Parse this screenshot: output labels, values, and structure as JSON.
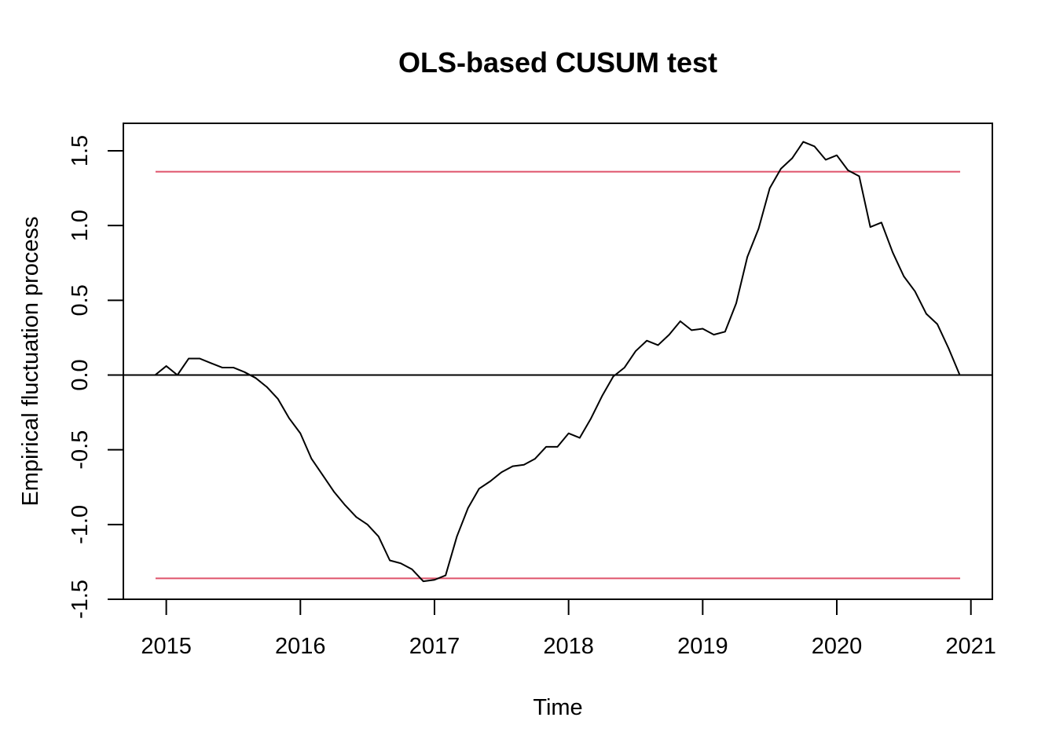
{
  "chart_data": {
    "type": "line",
    "title": "OLS-based CUSUM test",
    "xlabel": "Time",
    "ylabel": "Empirical fluctuation process",
    "xlim": [
      2014.68,
      2021.16
    ],
    "ylim": [
      -1.5,
      1.5
    ],
    "x_ticks": [
      2015,
      2016,
      2017,
      2018,
      2019,
      2020,
      2021
    ],
    "x_tick_labels": [
      "2015",
      "2016",
      "2017",
      "2018",
      "2019",
      "2020",
      "2021"
    ],
    "y_ticks": [
      -1.5,
      -1.0,
      -0.5,
      0.0,
      0.5,
      1.0,
      1.5
    ],
    "y_tick_labels": [
      "-1.5",
      "-1.0",
      "-0.5",
      "0.0",
      "0.5",
      "1.0",
      "1.5"
    ],
    "grid": false,
    "boundaries": {
      "upper": 1.36,
      "lower": -1.36,
      "color": "#DF536B",
      "x_range": [
        2014.92,
        2020.92
      ]
    },
    "reference_line": {
      "y": 0,
      "color": "#000000"
    },
    "series": [
      {
        "color": "#000000",
        "x": [
          2014.917,
          2015.0,
          2015.083,
          2015.167,
          2015.25,
          2015.333,
          2015.417,
          2015.5,
          2015.583,
          2015.667,
          2015.75,
          2015.833,
          2015.917,
          2016.0,
          2016.083,
          2016.167,
          2016.25,
          2016.333,
          2016.417,
          2016.5,
          2016.583,
          2016.667,
          2016.75,
          2016.833,
          2016.917,
          2017.0,
          2017.083,
          2017.167,
          2017.25,
          2017.333,
          2017.417,
          2017.5,
          2017.583,
          2017.667,
          2017.75,
          2017.833,
          2017.917,
          2018.0,
          2018.083,
          2018.167,
          2018.25,
          2018.333,
          2018.417,
          2018.5,
          2018.583,
          2018.667,
          2018.75,
          2018.833,
          2018.917,
          2019.0,
          2019.083,
          2019.167,
          2019.25,
          2019.333,
          2019.417,
          2019.5,
          2019.583,
          2019.667,
          2019.75,
          2019.833,
          2019.917,
          2020.0,
          2020.083,
          2020.167,
          2020.25,
          2020.333,
          2020.417,
          2020.5,
          2020.583,
          2020.667,
          2020.75,
          2020.833,
          2020.917
        ],
        "y": [
          0.0,
          0.06,
          0.0,
          0.11,
          0.11,
          0.08,
          0.05,
          0.05,
          0.02,
          -0.02,
          -0.08,
          -0.16,
          -0.29,
          -0.39,
          -0.56,
          -0.67,
          -0.78,
          -0.87,
          -0.95,
          -1.0,
          -1.08,
          -1.24,
          -1.26,
          -1.3,
          -1.38,
          -1.37,
          -1.34,
          -1.08,
          -0.89,
          -0.76,
          -0.71,
          -0.65,
          -0.61,
          -0.6,
          -0.56,
          -0.48,
          -0.48,
          -0.39,
          -0.42,
          -0.29,
          -0.14,
          -0.01,
          0.05,
          0.16,
          0.23,
          0.2,
          0.27,
          0.36,
          0.3,
          0.31,
          0.27,
          0.29,
          0.48,
          0.79,
          0.98,
          1.25,
          1.38,
          1.45,
          1.56,
          1.53,
          1.44,
          1.47,
          1.37,
          1.33,
          0.99,
          1.02,
          0.82,
          0.66,
          0.56,
          0.41,
          0.34,
          0.18,
          0.0
        ]
      }
    ]
  }
}
